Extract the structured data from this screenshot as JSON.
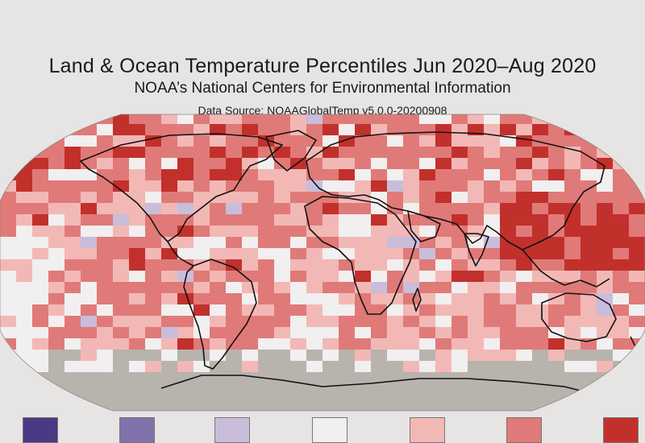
{
  "header": {
    "title": "Land & Ocean Temperature Percentiles Jun 2020–Aug 2020",
    "subtitle": "NOAA’s National Centers for Environmental Information",
    "source": "Data Source: NOAAGlobalTemp v5.0.0-20200908"
  },
  "map": {
    "projection": "robinson",
    "missing_color": "#b8b3ad",
    "coastline_color": "#111111"
  },
  "legend": {
    "categories": [
      {
        "key": "record-coldest",
        "color": "#4a3a86"
      },
      {
        "key": "much-cooler-than-average",
        "color": "#8272ac"
      },
      {
        "key": "cooler-than-average",
        "color": "#c9bddb"
      },
      {
        "key": "near-average",
        "color": "#f1efef"
      },
      {
        "key": "warmer-than-average",
        "color": "#f2b8b6"
      },
      {
        "key": "much-warmer-than-average",
        "color": "#e07a78"
      },
      {
        "key": "record-warmest",
        "color": "#c2302c"
      }
    ]
  }
}
